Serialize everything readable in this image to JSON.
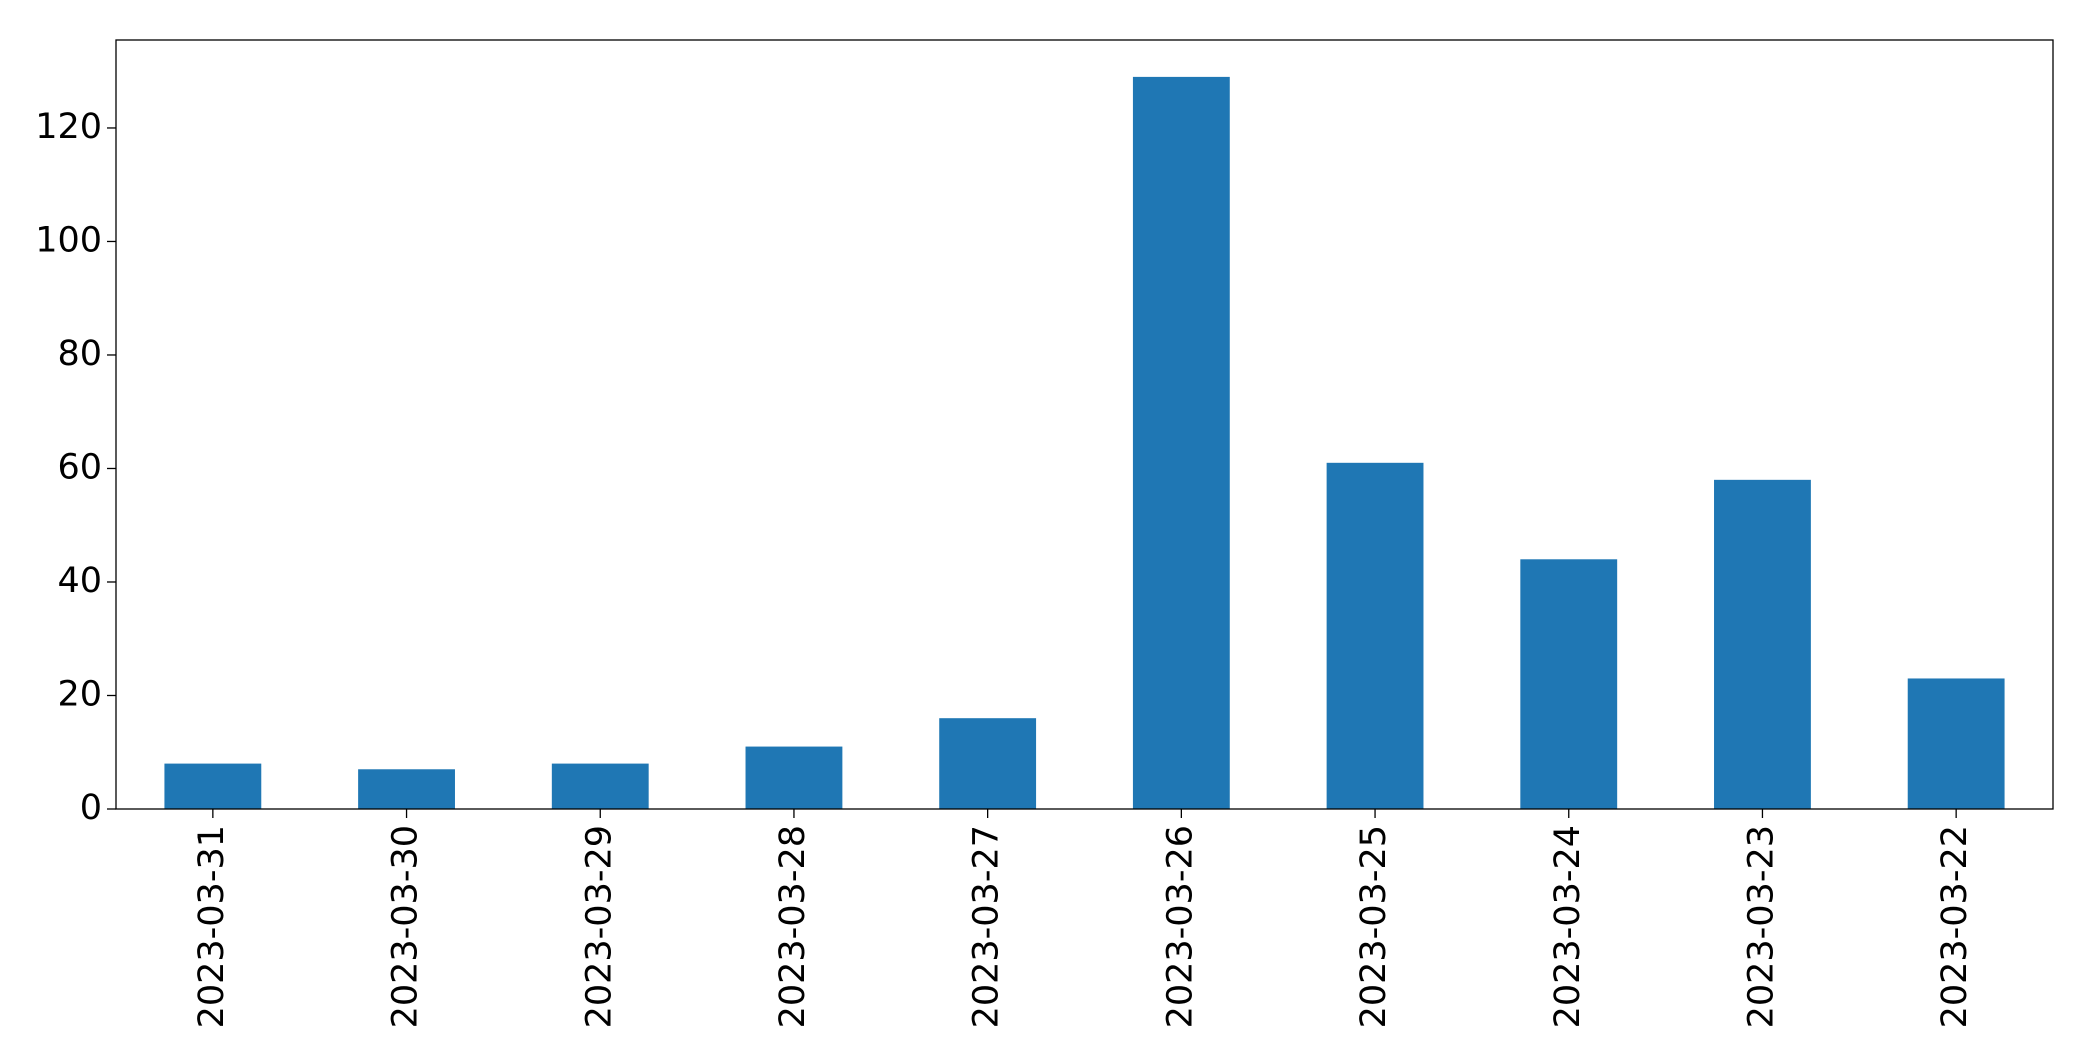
{
  "chart_data": {
    "type": "bar",
    "categories": [
      "2023-03-31",
      "2023-03-30",
      "2023-03-29",
      "2023-03-28",
      "2023-03-27",
      "2023-03-26",
      "2023-03-25",
      "2023-03-24",
      "2023-03-23",
      "2023-03-22"
    ],
    "values": [
      8,
      7,
      8,
      11,
      16,
      129,
      61,
      44,
      58,
      23
    ],
    "color": "#1f77b4",
    "ylim": [
      0,
      135.5
    ],
    "yticks": [
      0,
      20,
      40,
      60,
      80,
      100,
      120
    ],
    "grid": false
  }
}
